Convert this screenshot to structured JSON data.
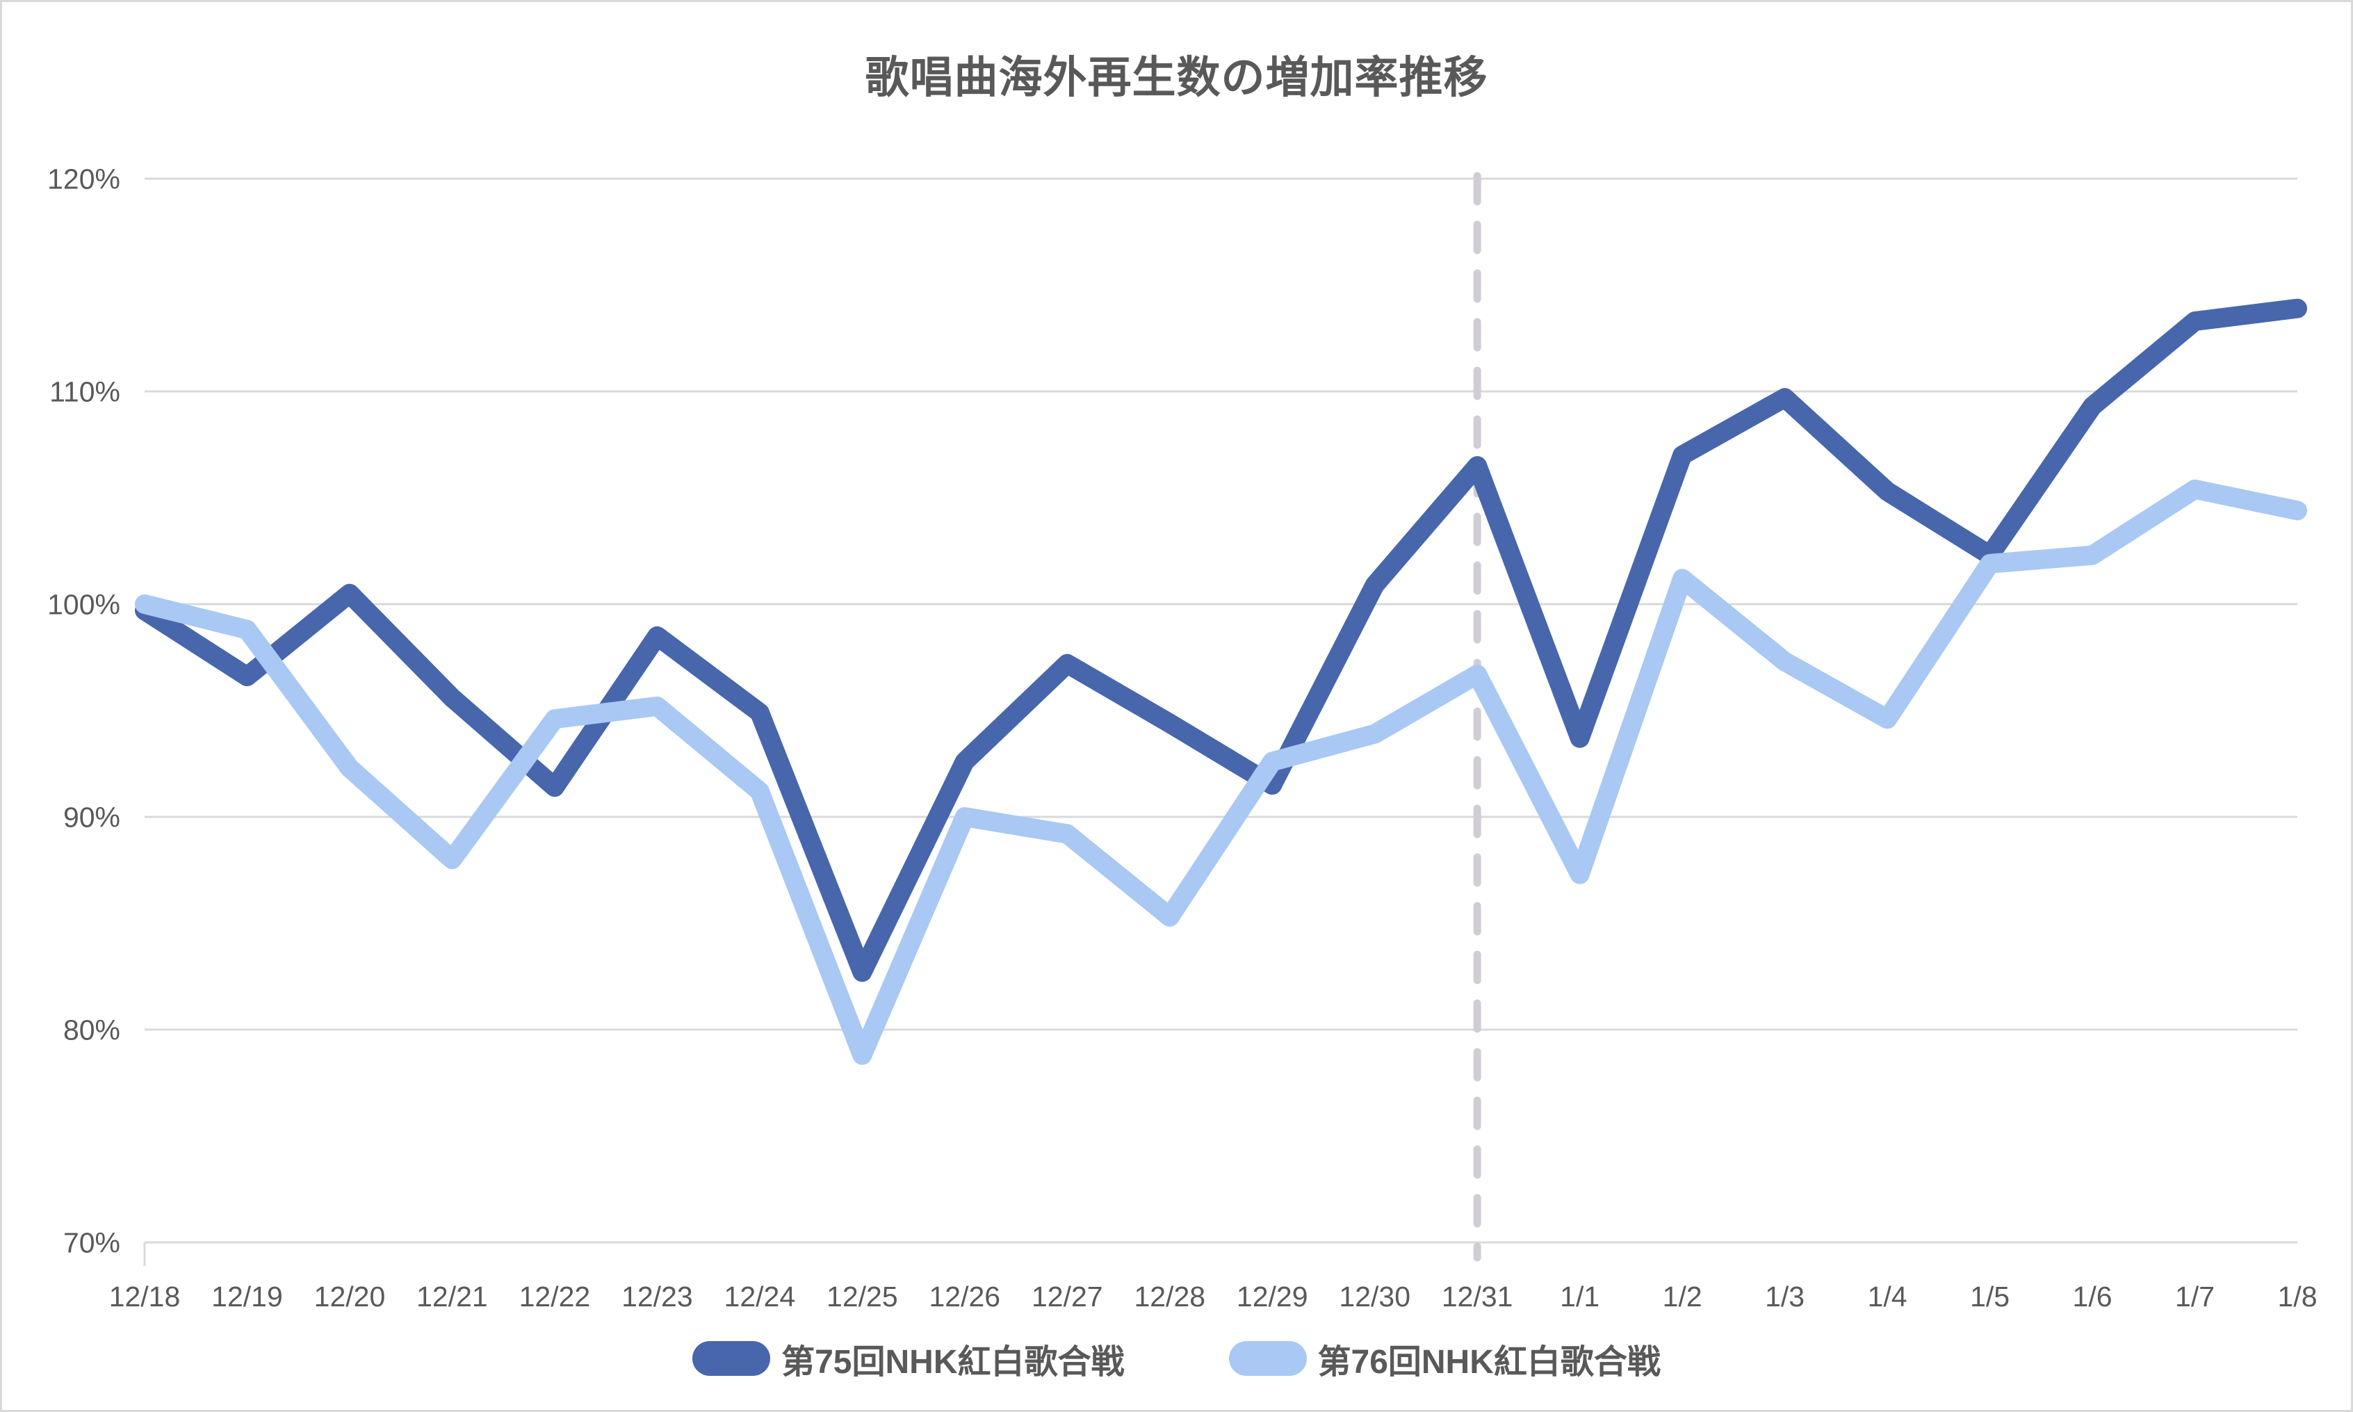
{
  "title": "歌唱曲海外再生数の増加率推移",
  "chart_data": {
    "type": "line",
    "categories": [
      "12/18",
      "12/19",
      "12/20",
      "12/21",
      "12/22",
      "12/23",
      "12/24",
      "12/25",
      "12/26",
      "12/27",
      "12/28",
      "12/29",
      "12/30",
      "12/31",
      "1/1",
      "1/2",
      "1/3",
      "1/4",
      "1/5",
      "1/6",
      "1/7",
      "1/8"
    ],
    "series": [
      {
        "name": "第75回NHK紅白歌合戦",
        "color": "#4766ac",
        "values": [
          99.7,
          96.6,
          100.5,
          95.6,
          91.4,
          98.5,
          94.9,
          82.7,
          92.6,
          97.2,
          94.4,
          91.5,
          100.9,
          106.5,
          93.7,
          107.0,
          109.7,
          105.3,
          102.3,
          109.3,
          113.3,
          113.9
        ]
      },
      {
        "name": "第76回NHK紅白歌合戦",
        "color": "#a9c8f3",
        "values": [
          100.0,
          98.8,
          92.3,
          88.0,
          94.6,
          95.2,
          91.2,
          78.8,
          90.0,
          89.2,
          85.3,
          92.6,
          93.9,
          96.7,
          87.3,
          101.2,
          97.3,
          94.6,
          101.9,
          102.3,
          105.4,
          104.4
        ]
      }
    ],
    "title": "歌唱曲海外再生数の増加率推移",
    "xlabel": "",
    "ylabel": "",
    "ylim": [
      70,
      120
    ],
    "y_tick_step": 10,
    "y_tick_labels": [
      "70%",
      "80%",
      "90%",
      "100%",
      "110%",
      "120%"
    ],
    "grid": true,
    "legend_position": "bottom",
    "separator": {
      "category": "12/31",
      "index": 13,
      "style": "dashed"
    }
  },
  "colors": {
    "grid": "#d9d9d9",
    "axis_text": "#595959",
    "title_text": "#595959",
    "separator_line": "#d0cdd4",
    "frame_border": "#d9d9d9",
    "background": "#ffffff"
  }
}
